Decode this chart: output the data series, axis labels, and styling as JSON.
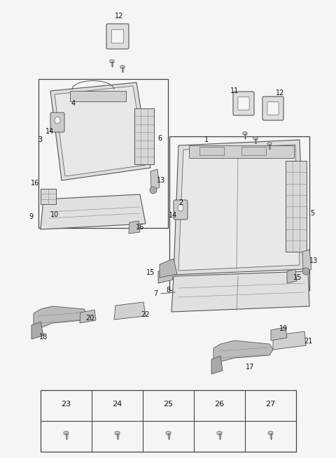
{
  "bg_color": "#f5f5f5",
  "line_color": "#444444",
  "table_numbers": [
    "23",
    "24",
    "25",
    "26",
    "27"
  ],
  "figsize": [
    4.8,
    6.55
  ],
  "dpi": 100
}
